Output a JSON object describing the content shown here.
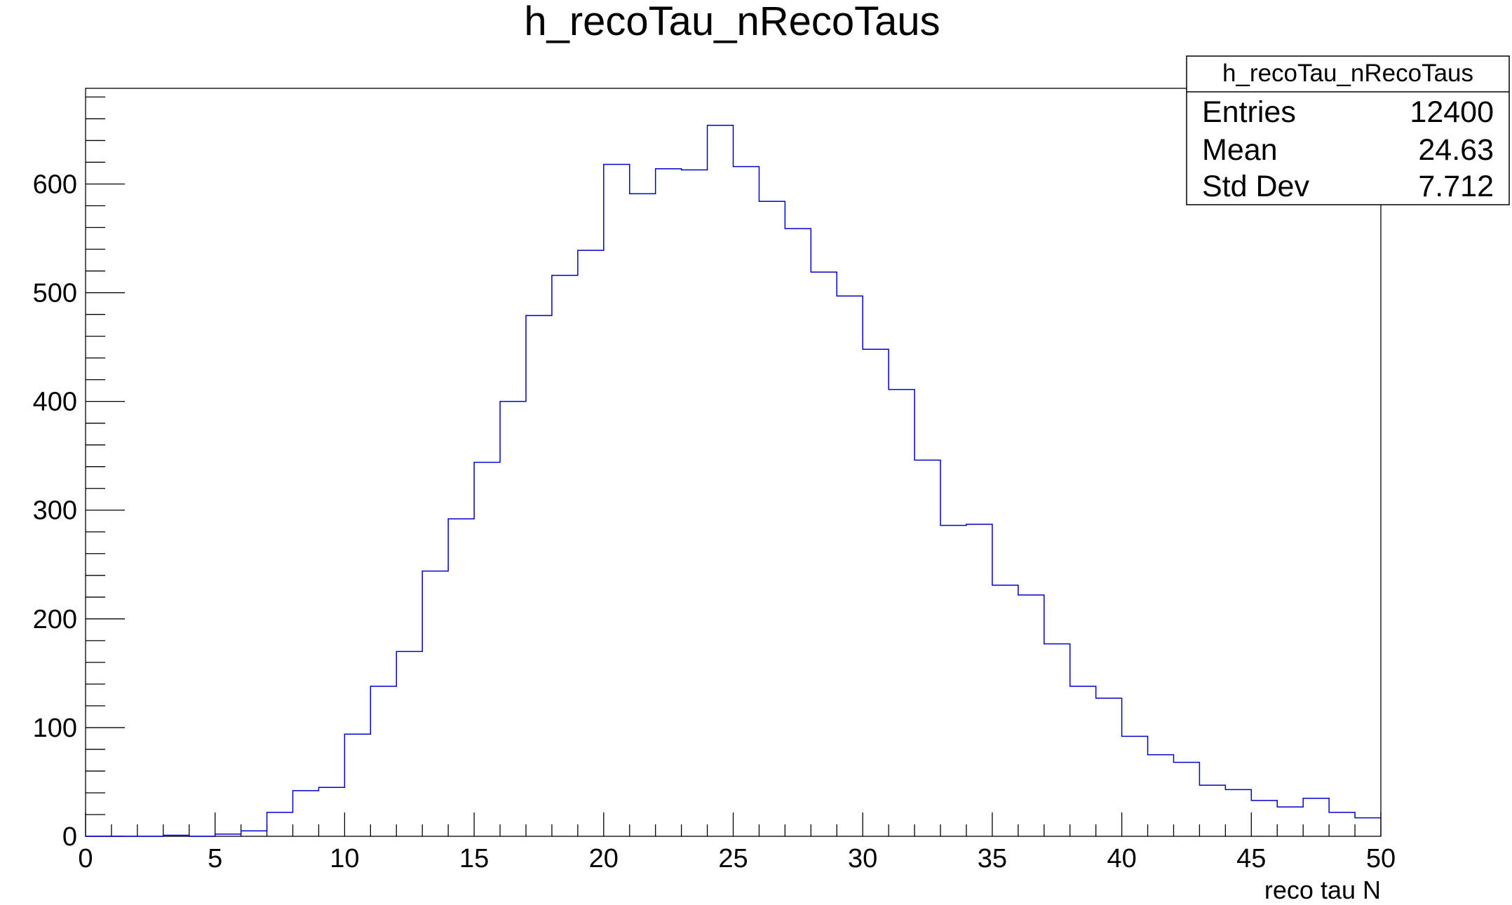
{
  "chart_data": {
    "type": "bar",
    "title": "h_recoTau_nRecoTaus",
    "xlabel": "reco tau N",
    "ylabel": "",
    "xlim": [
      0,
      50
    ],
    "ylim": [
      0,
      688
    ],
    "bin_width": 1,
    "bin_edges_start": 0,
    "x_ticks": [
      0,
      5,
      10,
      15,
      20,
      25,
      30,
      35,
      40,
      45,
      50
    ],
    "y_ticks": [
      0,
      100,
      200,
      300,
      400,
      500,
      600
    ],
    "x_tick_labels": [
      "0",
      "5",
      "10",
      "15",
      "20",
      "25",
      "30",
      "35",
      "40",
      "45",
      "50"
    ],
    "y_tick_labels": [
      "0",
      "100",
      "200",
      "300",
      "400",
      "500",
      "600"
    ],
    "line_color": "#0000cc",
    "grid": false,
    "legend_placement": "top-right",
    "values": [
      0,
      0,
      0,
      1,
      0,
      2,
      5,
      22,
      42,
      45,
      94,
      138,
      170,
      244,
      292,
      344,
      400,
      479,
      516,
      539,
      618,
      591,
      614,
      613,
      654,
      616,
      584,
      559,
      519,
      497,
      448,
      411,
      346,
      286,
      287,
      231,
      222,
      177,
      138,
      127,
      92,
      75,
      68,
      47,
      43,
      33,
      27,
      35,
      22,
      17
    ]
  },
  "stats": {
    "title": "h_recoTau_nRecoTaus",
    "rows": [
      {
        "label": "Entries",
        "value": "12400"
      },
      {
        "label": "Mean",
        "value": "24.63"
      },
      {
        "label": "Std Dev",
        "value": "7.712"
      }
    ]
  }
}
